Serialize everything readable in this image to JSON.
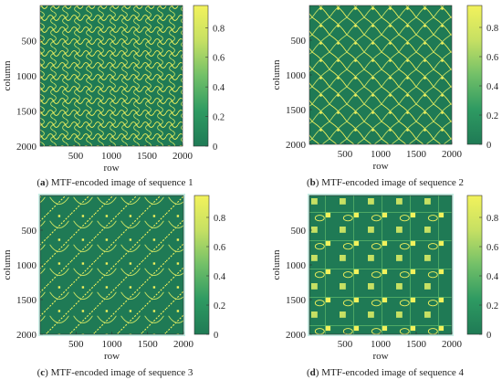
{
  "chart_data": [
    {
      "type": "heatmap",
      "panel_letter": "a",
      "caption": "MTF-encoded image of sequence 1",
      "xlabel": "row",
      "ylabel": "column",
      "xticks": [
        500,
        1000,
        1500,
        2000
      ],
      "yticks": [
        500,
        1000,
        1500,
        2000
      ],
      "x_range": [
        0,
        2000
      ],
      "y_range": [
        0,
        2000
      ],
      "colorbar_range": [
        0,
        0.95
      ],
      "colorbar_ticks": [
        0,
        0.2,
        0.4,
        0.6,
        0.8
      ],
      "colormap": [
        "#1f7a55",
        "#2e9a62",
        "#72c068",
        "#c6e063",
        "#f2f25c"
      ],
      "pattern": "dense-crossing-curves"
    },
    {
      "type": "heatmap",
      "panel_letter": "b",
      "caption": "MTF-encoded image of sequence 2",
      "xlabel": "row",
      "ylabel": "column",
      "xticks": [
        500,
        1000,
        1500,
        2000
      ],
      "yticks": [
        500,
        1000,
        1500,
        2000
      ],
      "x_range": [
        0,
        2000
      ],
      "y_range": [
        0,
        2000
      ],
      "colorbar_range": [
        0,
        0.95
      ],
      "colorbar_ticks": [
        0,
        0.2,
        0.4,
        0.6,
        0.8
      ],
      "colormap": [
        "#1f7a55",
        "#2e9a62",
        "#72c068",
        "#c6e063",
        "#f2f25c"
      ],
      "pattern": "diagonal-lattice-with-bright-nodes"
    },
    {
      "type": "heatmap",
      "panel_letter": "c",
      "caption": "MTF-encoded image of sequence 3",
      "xlabel": "row",
      "ylabel": "column",
      "xticks": [
        500,
        1000,
        1500,
        2000
      ],
      "yticks": [
        500,
        1000,
        1500,
        2000
      ],
      "x_range": [
        0,
        2000
      ],
      "y_range": [
        0,
        2000
      ],
      "colorbar_range": [
        0,
        0.95
      ],
      "colorbar_ticks": [
        0,
        0.2,
        0.4,
        0.6,
        0.8
      ],
      "colormap": [
        "#1f7a55",
        "#2e9a62",
        "#72c068",
        "#c6e063",
        "#f2f25c"
      ],
      "pattern": "curved-loops-with-diagonal-ridges"
    },
    {
      "type": "heatmap",
      "panel_letter": "d",
      "caption": "MTF-encoded image of sequence 4",
      "xlabel": "row",
      "ylabel": "column",
      "xticks": [
        500,
        1000,
        1500,
        2000
      ],
      "yticks": [
        500,
        1000,
        1500,
        2000
      ],
      "x_range": [
        0,
        2000
      ],
      "y_range": [
        0,
        2000
      ],
      "colorbar_range": [
        0,
        0.95
      ],
      "colorbar_ticks": [
        0,
        0.2,
        0.4,
        0.6,
        0.8
      ],
      "colormap": [
        "#1f7a55",
        "#2e9a62",
        "#72c068",
        "#c6e063",
        "#f2f25c"
      ],
      "pattern": "blocky-grid-with-loops"
    }
  ]
}
